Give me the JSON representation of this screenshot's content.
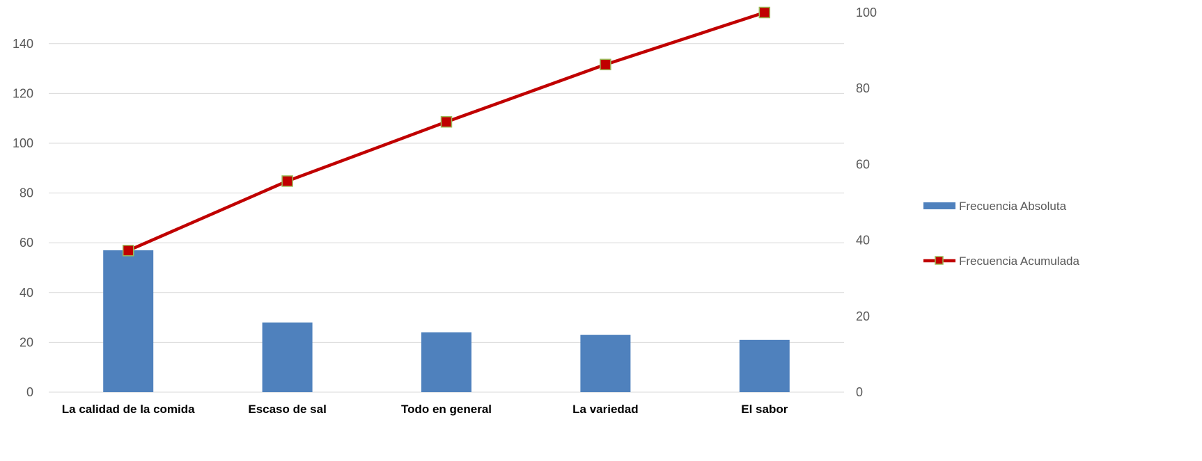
{
  "chart_data": {
    "type": "bar",
    "categories": [
      "La calidad de la comida",
      "Escaso de sal",
      "Todo en general",
      "La variedad",
      "El sabor"
    ],
    "series": [
      {
        "name": "Frecuencia Absoluta",
        "type": "bar",
        "axis": "left",
        "color": "#4F81BD",
        "values": [
          57,
          28,
          24,
          23,
          21
        ]
      },
      {
        "name": "Frecuencia Acumulada",
        "type": "line",
        "axis": "right",
        "color": "#C00000",
        "marker_border_color": "#9BBB59",
        "values": [
          37.3,
          55.6,
          71.2,
          86.3,
          100
        ]
      }
    ],
    "y_left": {
      "ticks": [
        0,
        20,
        40,
        60,
        80,
        100,
        120,
        140
      ],
      "ylim": [
        0,
        152.5
      ]
    },
    "y_right": {
      "ticks": [
        0,
        20,
        40,
        60,
        80,
        100
      ],
      "ylim": [
        0,
        100
      ]
    },
    "grid": true,
    "legend_position": "right"
  }
}
